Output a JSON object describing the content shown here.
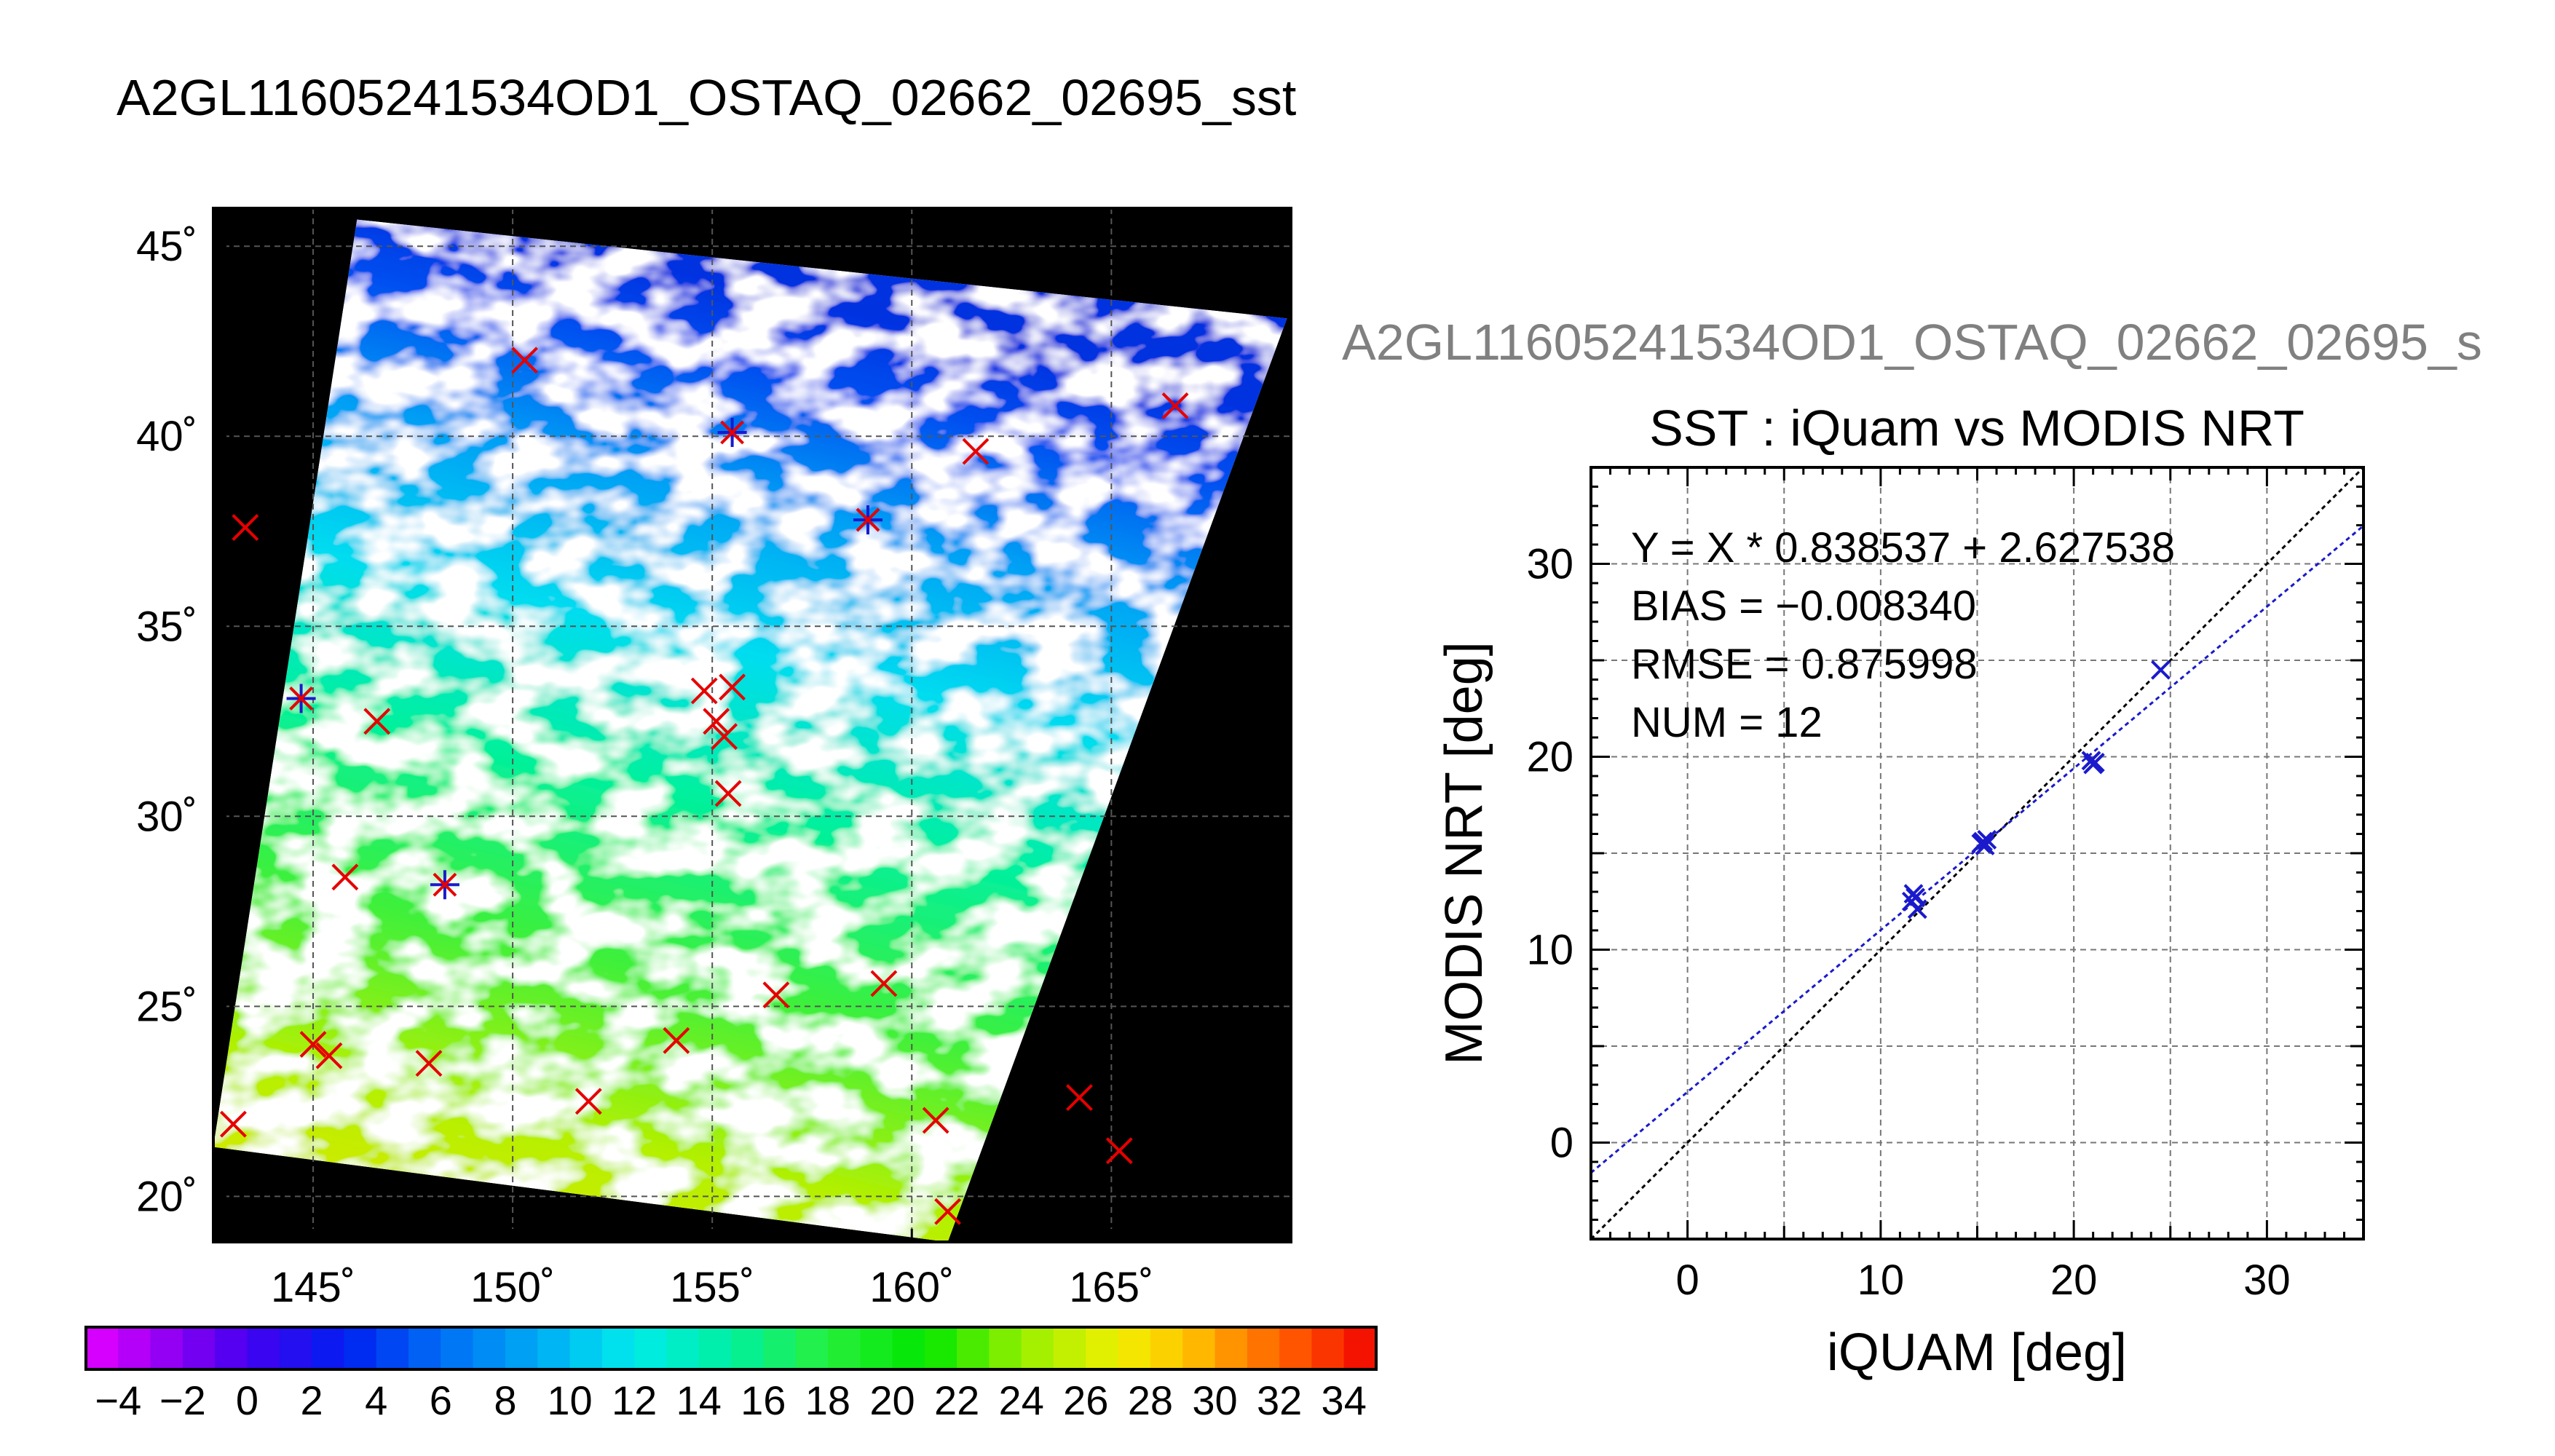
{
  "page": {
    "main_title": "A2GL11605241534OD1_OSTAQ_02662_02695_sst",
    "scatter_suptitle": "A2GL11605241534OD1_OSTAQ_02662_02695_s"
  },
  "colors": {
    "match_red": "#e60000",
    "match_blue": "#1a1acc",
    "fit_line": "#1a1acc",
    "one_to_one": "#000000",
    "suptitle_gray": "#808080"
  },
  "chart_data": [
    {
      "type": "scatter",
      "name": "map",
      "title": "",
      "xlabel": "",
      "ylabel": "",
      "xlim": [
        142.5,
        169.5
      ],
      "ylim": [
        18.8,
        46
      ],
      "x_ticks": [
        145,
        150,
        155,
        160,
        165
      ],
      "x_tick_labels": [
        "145˚",
        "150˚",
        "155˚",
        "160˚",
        "165˚"
      ],
      "y_ticks": [
        20,
        25,
        30,
        35,
        40,
        45
      ],
      "y_tick_labels": [
        "20˚",
        "25˚",
        "30˚",
        "35˚",
        "40˚",
        "45˚"
      ],
      "grid": true,
      "swath_corners_lonlat": [
        [
          146.1,
          45.7
        ],
        [
          169.4,
          43.1
        ],
        [
          160.9,
          18.8
        ],
        [
          142.5,
          21.3
        ]
      ],
      "colorbar": {
        "range": [
          -5,
          35
        ],
        "tick_values": [
          -4,
          -2,
          0,
          2,
          4,
          6,
          8,
          10,
          12,
          14,
          16,
          18,
          20,
          22,
          24,
          26,
          28,
          30,
          32,
          34
        ],
        "tick_labels": [
          "−4",
          "−2",
          "0",
          "2",
          "4",
          "6",
          "8",
          "10",
          "12",
          "14",
          "16",
          "18",
          "20",
          "22",
          "24",
          "26",
          "28",
          "30",
          "32",
          "34"
        ]
      },
      "red_markers": [
        [
          143.3,
          37.6
        ],
        [
          143.0,
          21.9
        ],
        [
          146.6,
          32.5
        ],
        [
          145.8,
          28.4
        ],
        [
          145.0,
          24.0
        ],
        [
          145.4,
          23.7
        ],
        [
          147.9,
          23.5
        ],
        [
          150.3,
          42.0
        ],
        [
          151.9,
          22.5
        ],
        [
          154.1,
          24.1
        ],
        [
          154.8,
          33.3
        ],
        [
          155.5,
          33.4
        ],
        [
          155.1,
          32.5
        ],
        [
          155.3,
          32.1
        ],
        [
          155.4,
          30.6
        ],
        [
          156.6,
          25.3
        ],
        [
          159.3,
          25.6
        ],
        [
          161.6,
          39.6
        ],
        [
          160.6,
          22.0
        ],
        [
          160.9,
          19.6
        ],
        [
          164.2,
          22.6
        ],
        [
          165.2,
          21.2
        ],
        [
          166.6,
          40.8
        ]
      ],
      "blue_markers": [
        [
          144.7,
          33.1
        ],
        [
          148.3,
          28.2
        ],
        [
          155.5,
          40.1
        ],
        [
          158.9,
          37.8
        ]
      ]
    },
    {
      "type": "scatter",
      "name": "sst-comparison",
      "title": "SST : iQuam vs MODIS NRT",
      "xlabel": "iQUAM [deg]",
      "ylabel": "MODIS NRT [deg]",
      "xlim": [
        -5,
        35
      ],
      "ylim": [
        -5,
        35
      ],
      "x_ticks": [
        0,
        10,
        20,
        30
      ],
      "y_ticks": [
        0,
        10,
        20,
        30
      ],
      "grid": true,
      "stats": [
        "Y = X * 0.838537 + 2.627538",
        "BIAS = −0.008340",
        "RMSE = 0.875998",
        "NUM = 12"
      ],
      "fit": {
        "slope": 0.838537,
        "intercept": 2.627538
      },
      "points": [
        [
          11.7,
          12.9
        ],
        [
          11.6,
          12.5
        ],
        [
          11.9,
          12.1
        ],
        [
          11.8,
          12.7
        ],
        [
          15.3,
          15.6
        ],
        [
          15.4,
          15.4
        ],
        [
          15.2,
          15.5
        ],
        [
          20.9,
          19.8
        ],
        [
          21.0,
          19.6
        ],
        [
          21.1,
          19.7
        ],
        [
          24.5,
          24.5
        ],
        [
          15.5,
          15.7
        ]
      ]
    }
  ]
}
